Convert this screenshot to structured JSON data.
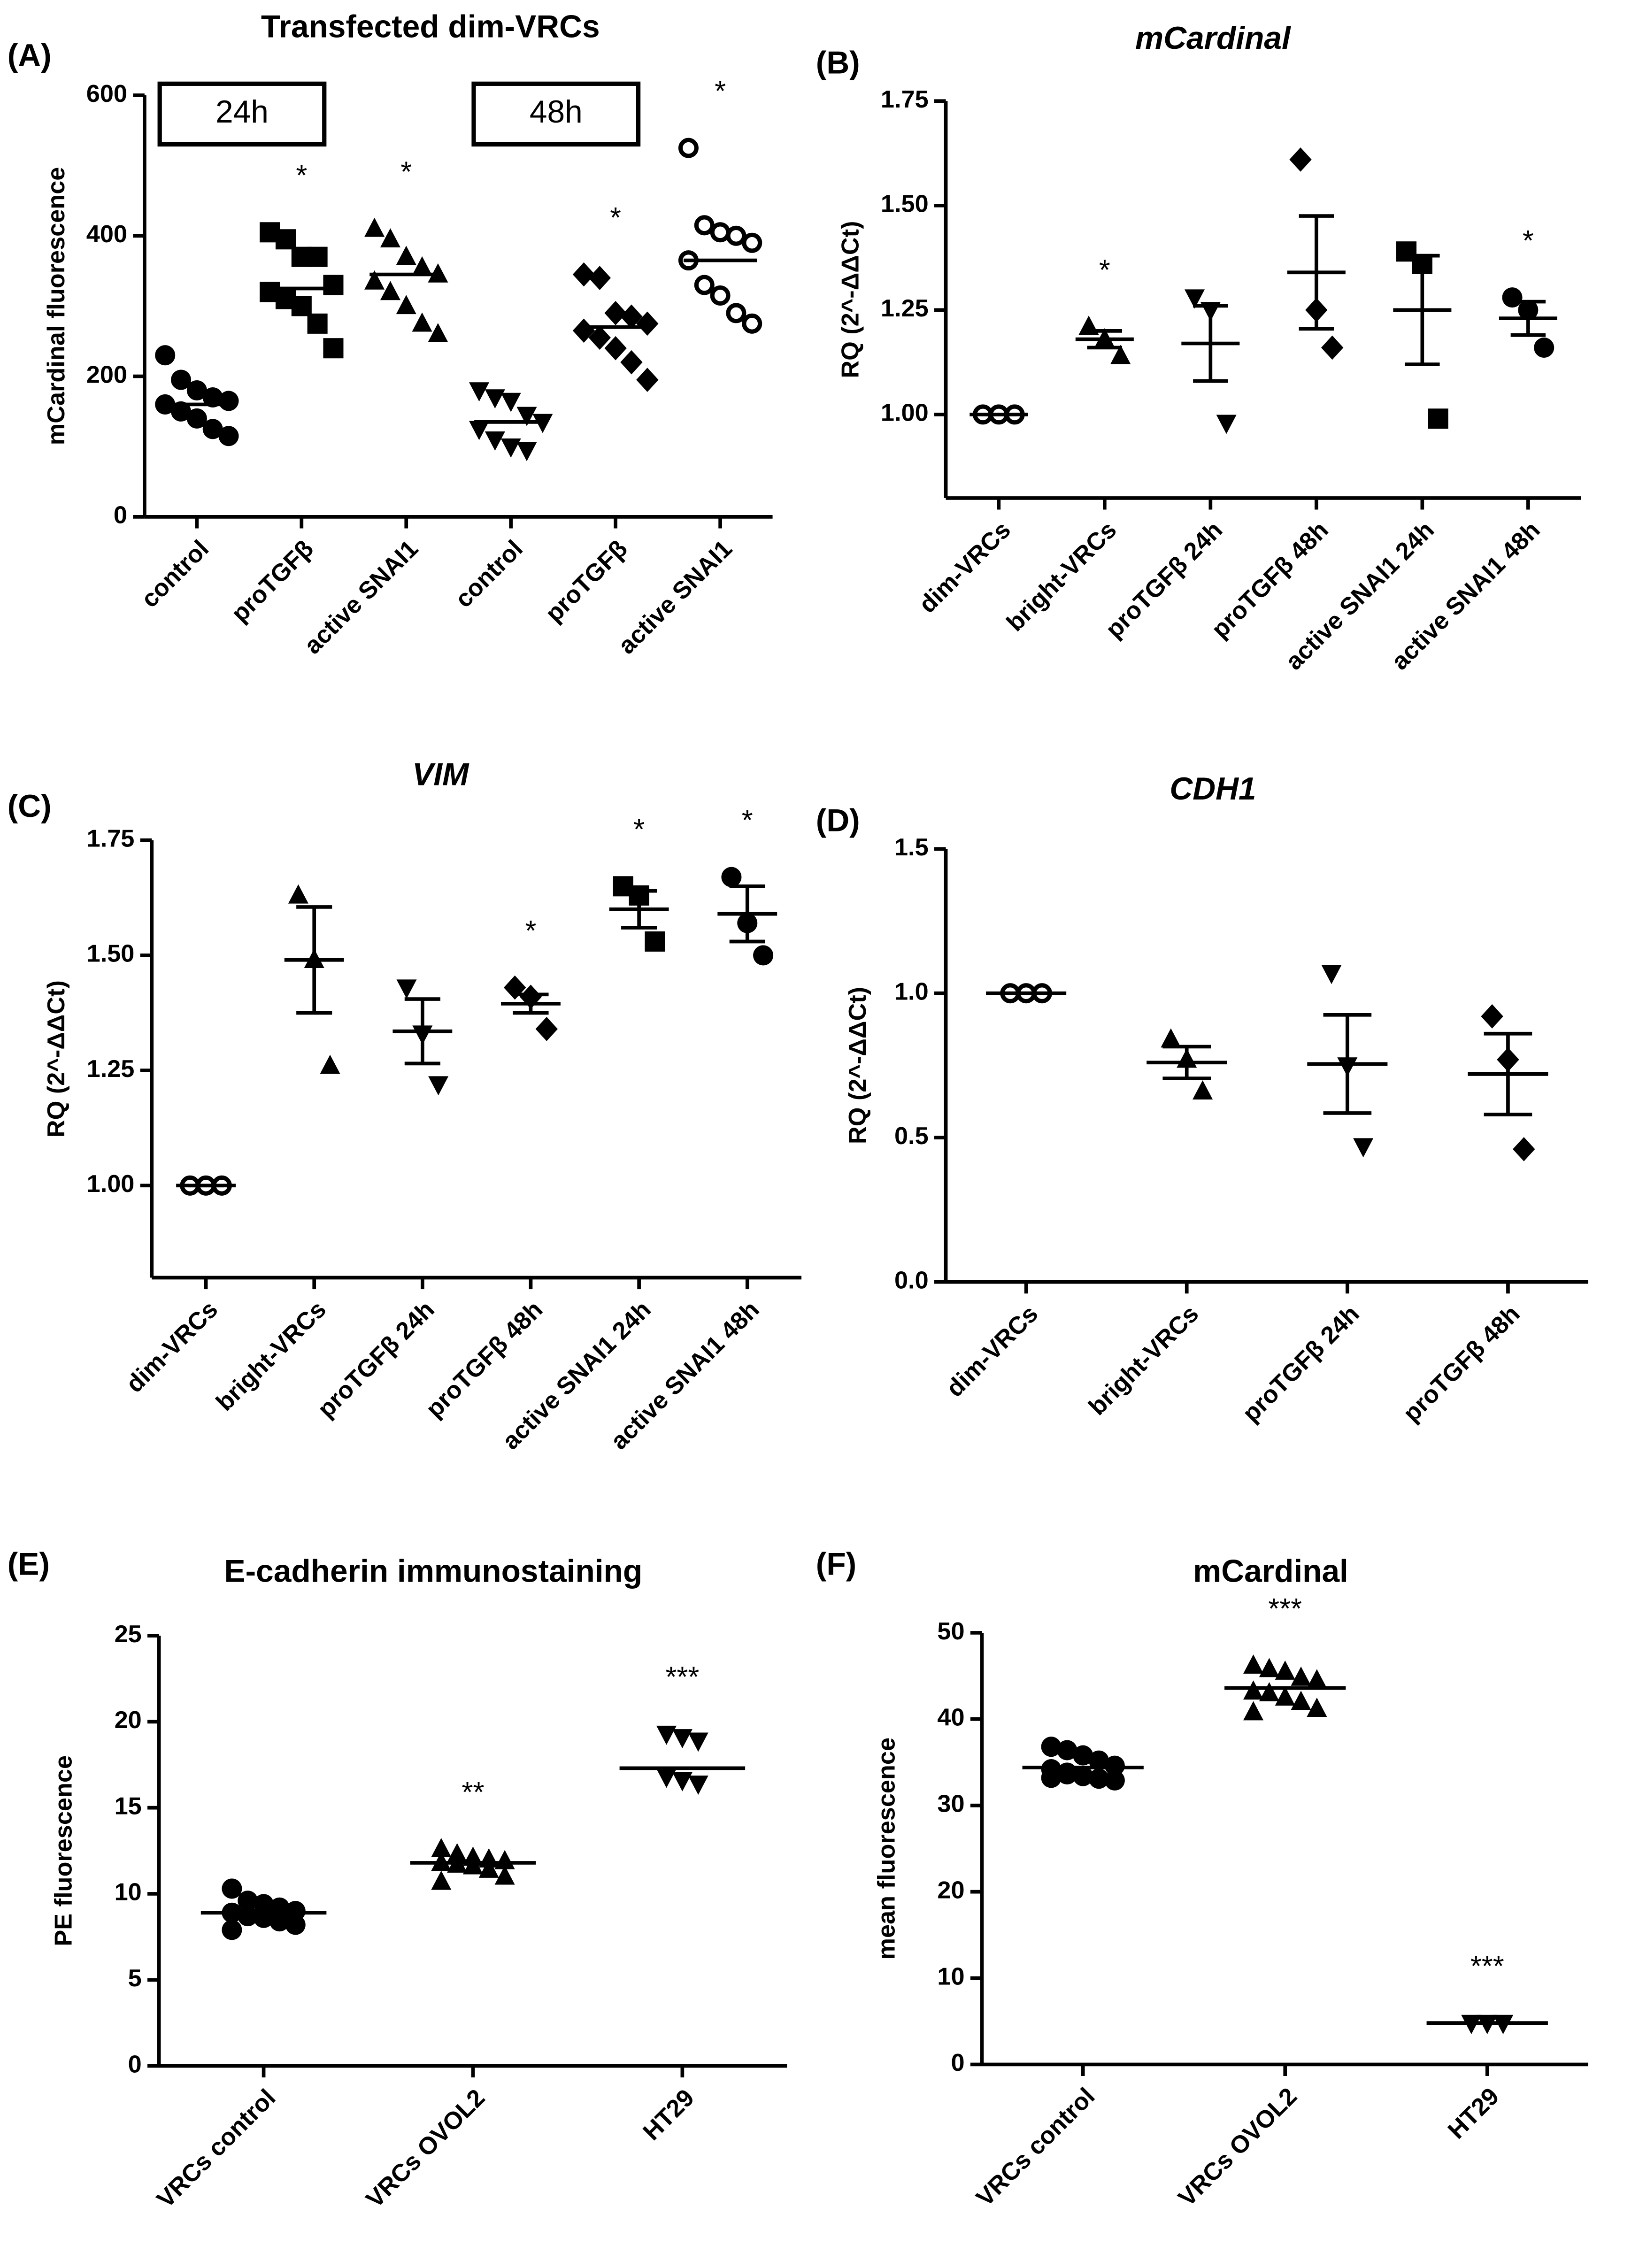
{
  "chart_data": [
    {
      "type": "dot",
      "panel": "(A)",
      "title": "Transfected dim-VRCs",
      "ylabel": "mCardinal fluorescence",
      "categories": [
        "control",
        "proTGFβ",
        "active SNAI1",
        "control",
        "proTGFβ",
        "active SNAI1"
      ],
      "markers": [
        "circle",
        "square",
        "triangle",
        "triangle-down",
        "diamond",
        "circle-open"
      ],
      "points": [
        [
          230,
          195,
          180,
          170,
          165,
          160,
          150,
          140,
          125,
          115
        ],
        [
          405,
          395,
          370,
          370,
          330,
          320,
          310,
          300,
          275,
          240
        ],
        [
          410,
          395,
          370,
          355,
          345,
          335,
          320,
          300,
          275,
          260
        ],
        [
          180,
          170,
          165,
          145,
          135,
          125,
          110,
          100,
          95
        ],
        [
          345,
          340,
          290,
          285,
          275,
          265,
          255,
          240,
          220,
          195
        ],
        [
          525,
          415,
          405,
          400,
          390,
          365,
          330,
          315,
          290,
          275
        ]
      ],
      "means": [
        160,
        325,
        345,
        135,
        270,
        365
      ],
      "significance": [
        null,
        "*",
        "*",
        null,
        "*",
        "*"
      ],
      "boxes": [
        "24h",
        "48h"
      ],
      "ylim": [
        0,
        600
      ],
      "yticks": [
        0,
        200,
        400,
        600
      ]
    },
    {
      "type": "dot",
      "panel": "(B)",
      "title": "mCardinal",
      "title_style": "italic",
      "ylabel": "RQ (2^-ΔΔCt)",
      "categories": [
        "dim-VRCs",
        "bright-VRCs",
        "proTGFβ 24h",
        "proTGFβ 48h",
        "active SNAI1 24h",
        "active SNAI1 48h"
      ],
      "markers": [
        "circle-open",
        "triangle",
        "triangle-down",
        "diamond",
        "square",
        "circle"
      ],
      "points": [
        [
          1,
          1,
          1
        ],
        [
          1.21,
          1.18,
          1.14
        ],
        [
          1.28,
          1.25,
          0.98
        ],
        [
          1.61,
          1.25,
          1.16
        ],
        [
          1.39,
          1.36,
          0.99
        ],
        [
          1.28,
          1.25,
          1.16
        ]
      ],
      "means": [
        1.0,
        1.18,
        1.17,
        1.34,
        1.25,
        1.23
      ],
      "errors": [
        0,
        0.02,
        0.09,
        0.135,
        0.13,
        0.04
      ],
      "significance": [
        null,
        "*",
        null,
        null,
        null,
        "*"
      ],
      "ylim": [
        0.8,
        1.75
      ],
      "yticks": [
        {
          "value": 1,
          "label": "1.00"
        },
        {
          "value": 1.25,
          "label": "1.25"
        },
        {
          "value": 1.5,
          "label": "1.50"
        },
        {
          "value": 1.75,
          "label": "1.75"
        }
      ]
    },
    {
      "type": "dot",
      "panel": "(C)",
      "title": "VIM",
      "title_style": "italic",
      "ylabel": "RQ (2^-ΔΔCt)",
      "categories": [
        "dim-VRCs",
        "bright-VRCs",
        "proTGFβ 24h",
        "proTGFβ 48h",
        "active SNAI1 24h",
        "active SNAI1 48h"
      ],
      "markers": [
        "circle-open",
        "triangle",
        "triangle-down",
        "diamond",
        "square",
        "circle"
      ],
      "points": [
        [
          1,
          1,
          1
        ],
        [
          1.63,
          1.49,
          1.26
        ],
        [
          1.43,
          1.33,
          1.22
        ],
        [
          1.43,
          1.41,
          1.34
        ],
        [
          1.65,
          1.63,
          1.53
        ],
        [
          1.67,
          1.57,
          1.5
        ]
      ],
      "means": [
        1.0,
        1.49,
        1.335,
        1.395,
        1.6,
        1.59
      ],
      "errors": [
        0,
        0.115,
        0.07,
        0.02,
        0.04,
        0.06
      ],
      "significance": [
        null,
        null,
        null,
        "*",
        "*",
        "*"
      ],
      "ylim": [
        0.8,
        1.75
      ],
      "yticks": [
        {
          "value": 1,
          "label": "1.00"
        },
        {
          "value": 1.25,
          "label": "1.25"
        },
        {
          "value": 1.5,
          "label": "1.50"
        },
        {
          "value": 1.75,
          "label": "1.75"
        }
      ]
    },
    {
      "type": "dot",
      "panel": "(D)",
      "title": "CDH1",
      "title_style": "italic",
      "ylabel": "RQ (2^-ΔΔCt)",
      "categories": [
        "dim-VRCs",
        "bright-VRCs",
        "proTGFβ 24h",
        "proTGFβ 48h"
      ],
      "markers": [
        "circle-open",
        "triangle",
        "triangle-down",
        "diamond"
      ],
      "points": [
        [
          1,
          1,
          1
        ],
        [
          0.84,
          0.77,
          0.66
        ],
        [
          1.07,
          0.75,
          0.47
        ],
        [
          0.92,
          0.77,
          0.46
        ]
      ],
      "means": [
        1.0,
        0.76,
        0.755,
        0.72
      ],
      "errors": [
        0,
        0.055,
        0.17,
        0.14
      ],
      "ylim": [
        0,
        1.5
      ],
      "yticks": [
        {
          "value": 0,
          "label": "0.0"
        },
        {
          "value": 0.5,
          "label": "0.5"
        },
        {
          "value": 1,
          "label": "1.0"
        },
        {
          "value": 1.5,
          "label": "1.5"
        }
      ]
    },
    {
      "type": "dot",
      "panel": "(E)",
      "title": "E-cadherin immunostaining",
      "ylabel": "PE fluorescence",
      "categories": [
        "VRCs control",
        "VRCs OVOL2",
        "HT29"
      ],
      "markers": [
        "circle",
        "triangle",
        "triangle-down"
      ],
      "points": [
        [
          10.3,
          9.6,
          9.4,
          9.2,
          9.0,
          8.9,
          8.7,
          8.6,
          8.4,
          8.2,
          7.9
        ],
        [
          12.6,
          12.3,
          12.1,
          12.0,
          11.9,
          11.8,
          11.7,
          11.6,
          11.4,
          11.0,
          10.7
        ],
        [
          19.3,
          19.1,
          18.9,
          16.8,
          16.6,
          16.4
        ]
      ],
      "means": [
        8.9,
        11.8,
        17.3
      ],
      "significance": [
        null,
        "**",
        "***"
      ],
      "ylim": [
        0,
        25
      ],
      "yticks": [
        0,
        5,
        10,
        15,
        20,
        25
      ]
    },
    {
      "type": "dot",
      "panel": "(F)",
      "title": "mCardinal",
      "ylabel": "mean fluorescence",
      "categories": [
        "VRCs control",
        "VRCs OVOL2",
        "HT29"
      ],
      "markers": [
        "circle",
        "triangle",
        "triangle-down"
      ],
      "points": [
        [
          36.8,
          36.4,
          35.8,
          35.2,
          34.6,
          34.2,
          33.8,
          33.4,
          33.1,
          32.9,
          33.2,
          33.6
        ],
        [
          46.2,
          45.8,
          45.5,
          44.8,
          44.5,
          43.2,
          43.0,
          42.5,
          42.0,
          41.2,
          40.8
        ],
        [
          4.8,
          4.8,
          4.8,
          4.8,
          4.8,
          4.8
        ]
      ],
      "means": [
        34.4,
        43.6,
        4.8
      ],
      "significance": [
        null,
        "***",
        "***"
      ],
      "ylim": [
        0,
        50
      ],
      "yticks": [
        0,
        10,
        20,
        30,
        40,
        50
      ]
    }
  ]
}
